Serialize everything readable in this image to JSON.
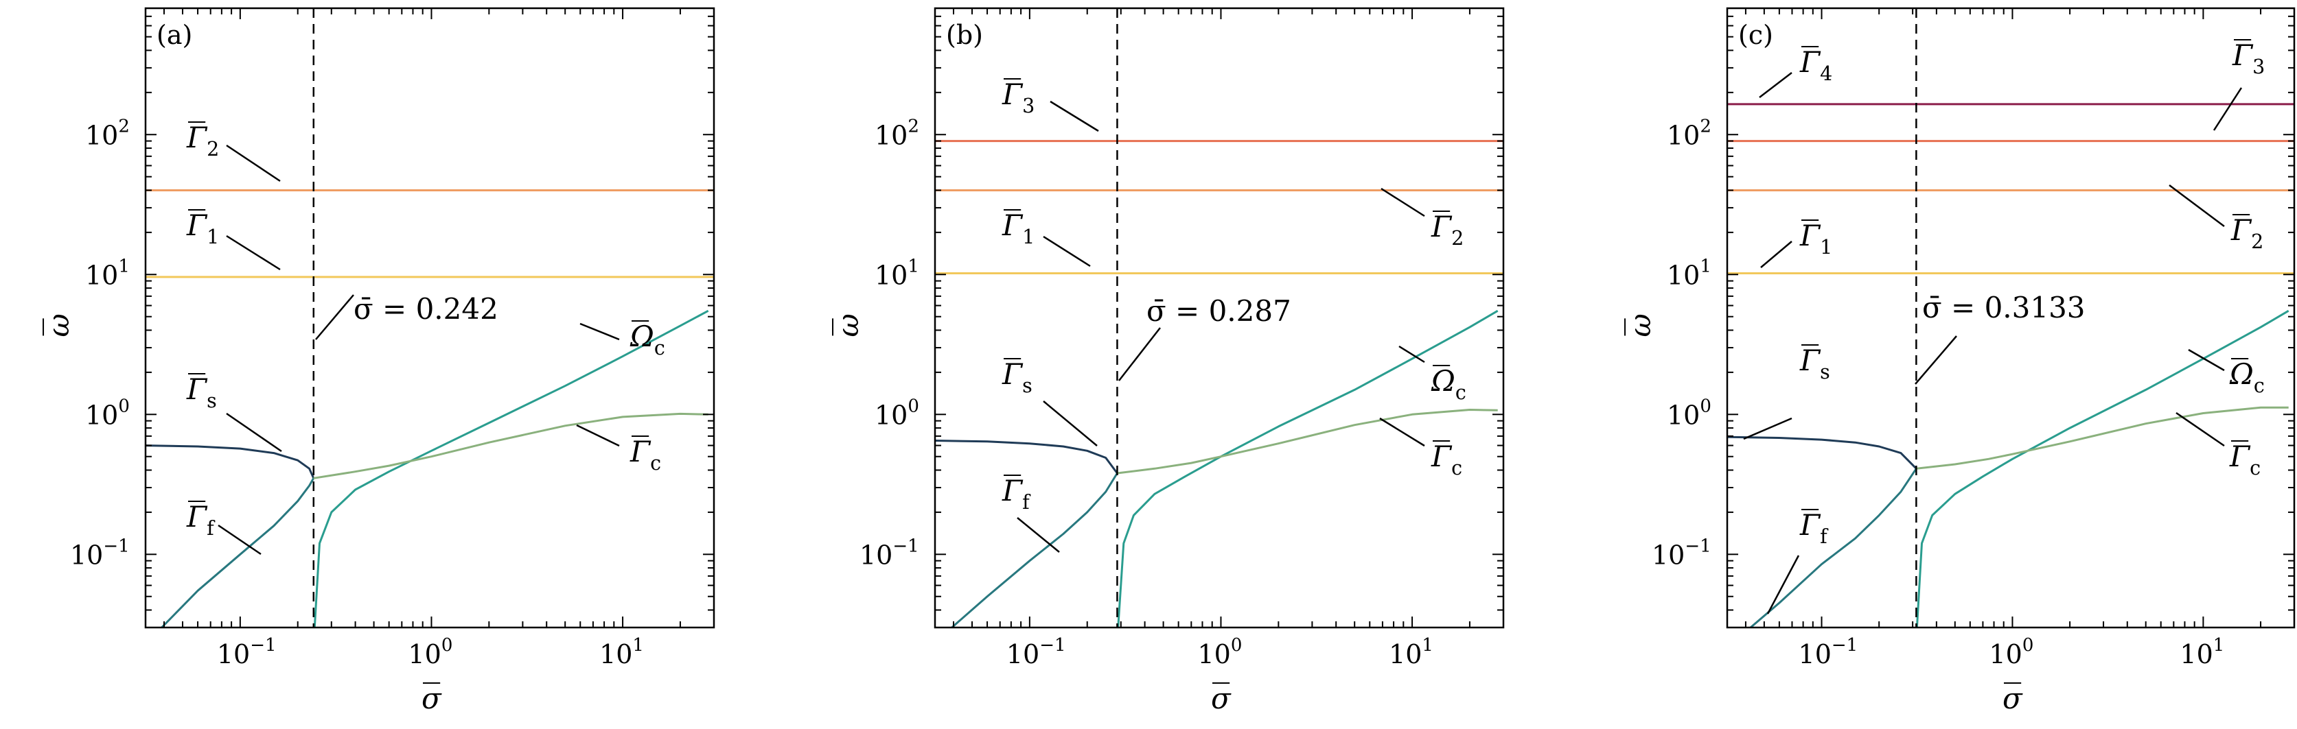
{
  "chart_data": [
    {
      "type": "line",
      "panel_label": "(a)",
      "xlabel": "σ̄",
      "ylabel": "ω̄",
      "xscale": "log",
      "yscale": "log",
      "xlim": [
        0.032,
        30
      ],
      "ylim": [
        0.03,
        800
      ],
      "x_ticks": [
        0.1,
        1,
        10
      ],
      "x_tick_labels": [
        {
          "base": "10",
          "exp": "−1"
        },
        {
          "base": "10",
          "exp": "0"
        },
        {
          "base": "10",
          "exp": "1"
        }
      ],
      "y_ticks": [
        0.1,
        1,
        10,
        100
      ],
      "y_tick_labels": [
        {
          "base": "10",
          "exp": "−1"
        },
        {
          "base": "10",
          "exp": "0"
        },
        {
          "base": "10",
          "exp": "1"
        },
        {
          "base": "10",
          "exp": "2"
        }
      ],
      "grid": false,
      "legend": "none",
      "critical_sigma": 0.242,
      "critical_label": "σ̄ = 0.242",
      "series": [
        {
          "name": "Γ̄1",
          "sub": "1",
          "color": "#f2c85b",
          "kind": "const",
          "value": 9.6
        },
        {
          "name": "Γ̄2",
          "sub": "2",
          "color": "#ef9d63",
          "kind": "const",
          "value": 40
        },
        {
          "name": "Γ̄s",
          "sub": "s",
          "color": "#1f3b57",
          "kind": "points",
          "x": [
            0.032,
            0.06,
            0.1,
            0.15,
            0.2,
            0.23,
            0.242
          ],
          "y": [
            0.6,
            0.59,
            0.57,
            0.53,
            0.47,
            0.41,
            0.35
          ]
        },
        {
          "name": "Γ̄f",
          "sub": "f",
          "color": "#28787f",
          "kind": "points",
          "x": [
            0.037,
            0.06,
            0.1,
            0.15,
            0.2,
            0.23,
            0.242
          ],
          "y": [
            0.028,
            0.055,
            0.1,
            0.16,
            0.24,
            0.31,
            0.35
          ]
        },
        {
          "name": "Ω̄c",
          "sub": "c",
          "color": "#2a9d8f",
          "kind": "points",
          "x": [
            0.245,
            0.26,
            0.3,
            0.4,
            0.6,
            1,
            2,
            5,
            10,
            20,
            28
          ],
          "y": [
            0.03,
            0.12,
            0.2,
            0.29,
            0.39,
            0.55,
            0.87,
            1.6,
            2.6,
            4.3,
            5.5
          ]
        },
        {
          "name": "Γ̄c",
          "sub": "c",
          "color": "#8ab17d",
          "kind": "points",
          "x": [
            0.242,
            0.4,
            0.6,
            1,
            2,
            5,
            10,
            20,
            28
          ],
          "y": [
            0.35,
            0.39,
            0.43,
            0.5,
            0.63,
            0.83,
            0.96,
            1.01,
            1.0
          ]
        }
      ]
    },
    {
      "type": "line",
      "panel_label": "(b)",
      "xlabel": "σ̄",
      "ylabel": "ω̄",
      "xscale": "log",
      "yscale": "log",
      "xlim": [
        0.032,
        30
      ],
      "ylim": [
        0.03,
        800
      ],
      "x_ticks": [
        0.1,
        1,
        10
      ],
      "x_tick_labels": [
        {
          "base": "10",
          "exp": "−1"
        },
        {
          "base": "10",
          "exp": "0"
        },
        {
          "base": "10",
          "exp": "1"
        }
      ],
      "y_ticks": [
        0.1,
        1,
        10,
        100
      ],
      "y_tick_labels": [
        {
          "base": "10",
          "exp": "−1"
        },
        {
          "base": "10",
          "exp": "0"
        },
        {
          "base": "10",
          "exp": "1"
        },
        {
          "base": "10",
          "exp": "2"
        }
      ],
      "grid": false,
      "legend": "none",
      "critical_sigma": 0.287,
      "critical_label": "σ̄ = 0.287",
      "series": [
        {
          "name": "Γ̄1",
          "sub": "1",
          "color": "#f2c85b",
          "kind": "const",
          "value": 10.2
        },
        {
          "name": "Γ̄2",
          "sub": "2",
          "color": "#ef9d63",
          "kind": "const",
          "value": 40
        },
        {
          "name": "Γ̄3",
          "sub": "3",
          "color": "#e76f51",
          "kind": "const",
          "value": 90
        },
        {
          "name": "Γ̄s",
          "sub": "s",
          "color": "#1f3b57",
          "kind": "points",
          "x": [
            0.032,
            0.06,
            0.1,
            0.15,
            0.2,
            0.25,
            0.287
          ],
          "y": [
            0.65,
            0.64,
            0.62,
            0.59,
            0.55,
            0.49,
            0.38
          ]
        },
        {
          "name": "Γ̄f",
          "sub": "f",
          "color": "#28787f",
          "kind": "points",
          "x": [
            0.037,
            0.06,
            0.1,
            0.15,
            0.2,
            0.25,
            0.287
          ],
          "y": [
            0.028,
            0.05,
            0.09,
            0.14,
            0.2,
            0.28,
            0.38
          ]
        },
        {
          "name": "Ω̄c",
          "sub": "c",
          "color": "#2a9d8f",
          "kind": "points",
          "x": [
            0.29,
            0.31,
            0.35,
            0.45,
            0.65,
            1,
            2,
            5,
            10,
            20,
            28
          ],
          "y": [
            0.03,
            0.12,
            0.19,
            0.27,
            0.36,
            0.5,
            0.82,
            1.5,
            2.5,
            4.2,
            5.5
          ]
        },
        {
          "name": "Γ̄c",
          "sub": "c",
          "color": "#8ab17d",
          "kind": "points",
          "x": [
            0.287,
            0.45,
            0.7,
            1,
            2,
            5,
            10,
            20,
            28
          ],
          "y": [
            0.38,
            0.41,
            0.45,
            0.5,
            0.62,
            0.84,
            1.0,
            1.08,
            1.07
          ]
        }
      ]
    },
    {
      "type": "line",
      "panel_label": "(c)",
      "xlabel": "σ̄",
      "ylabel": "ω̄",
      "xscale": "log",
      "yscale": "log",
      "xlim": [
        0.032,
        30
      ],
      "ylim": [
        0.03,
        800
      ],
      "x_ticks": [
        0.1,
        1,
        10
      ],
      "x_tick_labels": [
        {
          "base": "10",
          "exp": "−1"
        },
        {
          "base": "10",
          "exp": "0"
        },
        {
          "base": "10",
          "exp": "1"
        }
      ],
      "y_ticks": [
        0.1,
        1,
        10,
        100
      ],
      "y_tick_labels": [
        {
          "base": "10",
          "exp": "−1"
        },
        {
          "base": "10",
          "exp": "0"
        },
        {
          "base": "10",
          "exp": "1"
        },
        {
          "base": "10",
          "exp": "2"
        }
      ],
      "grid": false,
      "legend": "none",
      "critical_sigma": 0.3133,
      "critical_label": "σ̄ = 0.3133",
      "series": [
        {
          "name": "Γ̄1",
          "sub": "1",
          "color": "#f2c85b",
          "kind": "const",
          "value": 10.2
        },
        {
          "name": "Γ̄2",
          "sub": "2",
          "color": "#ef9d63",
          "kind": "const",
          "value": 40
        },
        {
          "name": "Γ̄3",
          "sub": "3",
          "color": "#e76f51",
          "kind": "const",
          "value": 90
        },
        {
          "name": "Γ̄4",
          "sub": "4",
          "color": "#8b1e4a",
          "kind": "const",
          "value": 165
        },
        {
          "name": "Γ̄s",
          "sub": "s",
          "color": "#1f3b57",
          "kind": "points",
          "x": [
            0.032,
            0.06,
            0.1,
            0.15,
            0.2,
            0.26,
            0.3133
          ],
          "y": [
            0.69,
            0.68,
            0.66,
            0.63,
            0.59,
            0.53,
            0.41
          ]
        },
        {
          "name": "Γ̄f",
          "sub": "f",
          "color": "#28787f",
          "kind": "points",
          "x": [
            0.04,
            0.06,
            0.1,
            0.15,
            0.2,
            0.26,
            0.3133
          ],
          "y": [
            0.028,
            0.045,
            0.085,
            0.13,
            0.19,
            0.28,
            0.41
          ]
        },
        {
          "name": "Ω̄c",
          "sub": "c",
          "color": "#2a9d8f",
          "kind": "points",
          "x": [
            0.316,
            0.335,
            0.38,
            0.5,
            0.7,
            1,
            2,
            5,
            10,
            20,
            28
          ],
          "y": [
            0.03,
            0.12,
            0.19,
            0.27,
            0.36,
            0.48,
            0.8,
            1.5,
            2.5,
            4.2,
            5.5
          ]
        },
        {
          "name": "Γ̄c",
          "sub": "c",
          "color": "#8ab17d",
          "kind": "points",
          "x": [
            0.3133,
            0.5,
            0.75,
            1,
            2,
            5,
            10,
            20,
            28
          ],
          "y": [
            0.41,
            0.44,
            0.48,
            0.52,
            0.64,
            0.86,
            1.02,
            1.12,
            1.12
          ]
        }
      ]
    }
  ]
}
